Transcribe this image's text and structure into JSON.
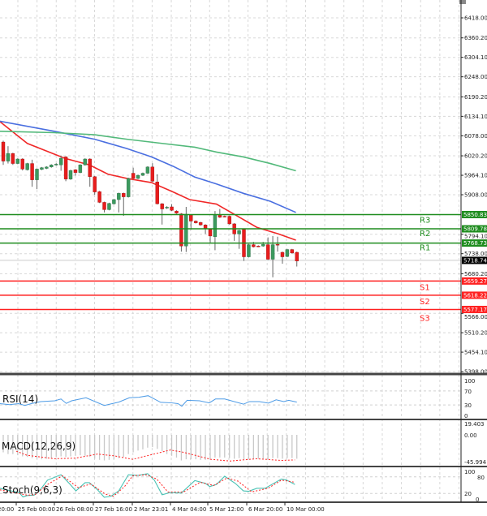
{
  "chart_data": {
    "type": "candlestick",
    "price_axis": {
      "range": [
        5398.0,
        6418.0
      ],
      "ticks": [
        "6418.00",
        "6360.20",
        "6304.10",
        "6248.00",
        "6190.20",
        "6134.10",
        "6078.00",
        "6020.20",
        "5964.10",
        "5908.00",
        "5794.10",
        "5738.00",
        "5680.20",
        "5566.00",
        "5510.20",
        "5454.10",
        "5398.00"
      ]
    },
    "time_axis": {
      "labels": [
        "20:00",
        "25 Feb 00:00",
        "26 Feb 08:00",
        "27 Feb 16:00",
        "2 Mar 23:01",
        "4 Mar 04:00",
        "5 Mar 12:00",
        "6 Mar 20:00",
        "10 Mar 00:00"
      ]
    },
    "last_price": {
      "value": "5718.74",
      "color": "#000000"
    },
    "candles_ohlc": [
      [
        6060,
        6064,
        5994,
        6005
      ],
      [
        6005,
        6048,
        5998,
        6027
      ],
      [
        6027,
        6029,
        5994,
        5998
      ],
      [
        5998,
        6013,
        5996,
        6011
      ],
      [
        6011,
        6013,
        5978,
        5982
      ],
      [
        5980,
        6000,
        5978,
        5998
      ],
      [
        5998,
        6009,
        5931,
        5951
      ],
      [
        5951,
        5984,
        5924,
        5982
      ],
      [
        5981,
        5988,
        5979,
        5986
      ],
      [
        5984,
        5990,
        5982,
        5988
      ],
      [
        5988,
        5996,
        5986,
        5994
      ],
      [
        5995,
        5999,
        5992,
        5996
      ],
      [
        5994,
        6021,
        5977,
        6013
      ],
      [
        6017,
        6019,
        5947,
        5953
      ],
      [
        5953,
        5980,
        5951,
        5978
      ],
      [
        5980,
        5982,
        5963,
        5972
      ],
      [
        5972,
        5996,
        5970,
        5994
      ],
      [
        5994,
        6013,
        5992,
        6011
      ],
      [
        6011,
        6013,
        5931,
        5960
      ],
      [
        5960,
        5962,
        5908,
        5916
      ],
      [
        5917,
        5919,
        5884,
        5886
      ],
      [
        5886,
        5888,
        5857,
        5865
      ],
      [
        5865,
        5885,
        5863,
        5883
      ],
      [
        5882,
        5896,
        5880,
        5894
      ],
      [
        5894,
        5914,
        5857,
        5912
      ],
      [
        5912,
        5914,
        5847,
        5902
      ],
      [
        5902,
        5957,
        5900,
        5955
      ],
      [
        5970,
        5986,
        5953,
        5955
      ],
      [
        5955,
        5966,
        5953,
        5964
      ],
      [
        5964,
        5972,
        5962,
        5970
      ],
      [
        5970,
        5990,
        5968,
        5988
      ],
      [
        5988,
        5999,
        5945,
        5947
      ],
      [
        5945,
        5967,
        5880,
        5882
      ],
      [
        5882,
        5884,
        5822,
        5867
      ],
      [
        5871,
        5875,
        5867,
        5872
      ],
      [
        5873,
        5881,
        5861,
        5863
      ],
      [
        5861,
        5863,
        5853,
        5855
      ],
      [
        5853,
        5855,
        5744,
        5760
      ],
      [
        5760,
        5873,
        5743,
        5852
      ],
      [
        5850,
        5852,
        5807,
        5832
      ],
      [
        5832,
        5834,
        5825,
        5827
      ],
      [
        5828,
        5830,
        5819,
        5821
      ],
      [
        5821,
        5823,
        5795,
        5811
      ],
      [
        5808,
        5810,
        5768,
        5789
      ],
      [
        5787,
        5861,
        5748,
        5850
      ],
      [
        5850,
        5867,
        5841,
        5843
      ],
      [
        5846,
        5848,
        5843,
        5845
      ],
      [
        5846,
        5848,
        5822,
        5824
      ],
      [
        5824,
        5826,
        5775,
        5795
      ],
      [
        5795,
        5807,
        5752,
        5805
      ],
      [
        5808,
        5810,
        5717,
        5729
      ],
      [
        5729,
        5766,
        5727,
        5764
      ],
      [
        5764,
        5772,
        5756,
        5758
      ],
      [
        5760,
        5762,
        5757,
        5759
      ],
      [
        5760,
        5772,
        5758,
        5765
      ],
      [
        5764,
        5785,
        5720,
        5722
      ],
      [
        5722,
        5789,
        5670,
        5764
      ],
      [
        5765,
        5787,
        5744,
        5764
      ],
      [
        5742,
        5744,
        5709,
        5729
      ],
      [
        5730,
        5752,
        5728,
        5750
      ],
      [
        5750,
        5752,
        5738,
        5740
      ],
      [
        5742,
        5744,
        5701,
        5717
      ]
    ],
    "candle_colors": {
      "up": "#3c9a5f",
      "down": "#e81c1c"
    },
    "moving_averages": [
      {
        "color": "#f02828",
        "points": [
          [
            0.3,
            6119
          ],
          [
            6,
            6056
          ],
          [
            13.8,
            6013
          ],
          [
            18.9,
            5994
          ],
          [
            22.8,
            5967
          ],
          [
            26.7,
            5955
          ],
          [
            31.8,
            5943
          ],
          [
            36.3,
            5916
          ],
          [
            39.7,
            5894
          ],
          [
            45.3,
            5881
          ],
          [
            49.2,
            5850
          ],
          [
            53.7,
            5814
          ],
          [
            58.2,
            5795
          ],
          [
            61.8,
            5777
          ]
        ]
      },
      {
        "color": "#4a6fe0",
        "points": [
          [
            0.3,
            6120
          ],
          [
            11.6,
            6091
          ],
          [
            20,
            6068
          ],
          [
            26.7,
            6041
          ],
          [
            31.8,
            6017
          ],
          [
            36.3,
            5990
          ],
          [
            40.8,
            5959
          ],
          [
            45.3,
            5939
          ],
          [
            50.9,
            5912
          ],
          [
            56.5,
            5889
          ],
          [
            61.8,
            5857
          ]
        ]
      },
      {
        "color": "#52b97a",
        "points": [
          [
            0.3,
            6091
          ],
          [
            11.6,
            6087
          ],
          [
            20,
            6081
          ],
          [
            26.7,
            6068
          ],
          [
            34,
            6056
          ],
          [
            40.8,
            6045
          ],
          [
            45.3,
            6031
          ],
          [
            50.9,
            6017
          ],
          [
            56.5,
            5998
          ],
          [
            61.8,
            5977
          ]
        ]
      }
    ],
    "levels": [
      {
        "name": "R3",
        "value": "5850.83",
        "color": "#1e8c1e"
      },
      {
        "name": "R2",
        "value": "5809.78",
        "color": "#1e8c1e"
      },
      {
        "name": "R1",
        "value": "5768.73",
        "color": "#1e8c1e"
      },
      {
        "name": "S1",
        "value": "5659.27",
        "color": "#ff2020"
      },
      {
        "name": "S2",
        "value": "5618.22",
        "color": "#ff2020"
      },
      {
        "name": "S3",
        "value": "5577.17",
        "color": "#ff2020"
      }
    ],
    "rsi": {
      "label": "RSI(14)",
      "range": [
        0,
        100
      ],
      "ticks": [
        "100",
        "70",
        "30",
        "0"
      ],
      "color": "#4d9be6",
      "points": [
        [
          0.3,
          33.7
        ],
        [
          2.3,
          30.7
        ],
        [
          4.2,
          33.7
        ],
        [
          5.5,
          28.5
        ],
        [
          6.8,
          33.7
        ],
        [
          8.8,
          39.6
        ],
        [
          11.7,
          41.8
        ],
        [
          13,
          47
        ],
        [
          14.1,
          34.4
        ],
        [
          15.2,
          41.8
        ],
        [
          18.2,
          50.6
        ],
        [
          22,
          28.5
        ],
        [
          25,
          38.1
        ],
        [
          27.2,
          50.6
        ],
        [
          29.2,
          52
        ],
        [
          31.1,
          56.5
        ],
        [
          33.7,
          37.4
        ],
        [
          36,
          35.9
        ],
        [
          37.3,
          33.7
        ],
        [
          38.1,
          26.3
        ],
        [
          39.2,
          43.3
        ],
        [
          41.8,
          41.8
        ],
        [
          43.8,
          35.9
        ],
        [
          45.1,
          47
        ],
        [
          47,
          47
        ],
        [
          50.9,
          32.2
        ],
        [
          52.2,
          39.6
        ],
        [
          54.2,
          39.6
        ],
        [
          56.1,
          35.2
        ],
        [
          57.7,
          44.7
        ],
        [
          59.3,
          39.6
        ],
        [
          60.3,
          43.3
        ],
        [
          62,
          38.1
        ]
      ]
    },
    "macd": {
      "label": "MACD(12,26,9)",
      "range": [
        -45.994,
        19.403
      ],
      "ticks": [
        "19.403",
        "0.00",
        "-45.994"
      ],
      "histogram_color": "#c8c8c8",
      "signal_color": "#ff2020",
      "histogram": [
        -30,
        -33,
        -33,
        -35,
        -37,
        -38,
        -40,
        -41,
        -42,
        -41,
        -40,
        -38,
        -37,
        -38,
        -37,
        -36,
        -35,
        -36,
        -38,
        -41,
        -43,
        -44,
        -43,
        -42,
        -40,
        -38,
        -33,
        -30,
        -27,
        -25,
        -22,
        -21,
        -24,
        -28,
        -33,
        -36,
        -39,
        -44,
        -42,
        -42,
        -42,
        -43,
        -43,
        -41,
        -39,
        -39,
        -39,
        -40,
        -41,
        -40,
        -42,
        -41,
        -41,
        -41,
        -41,
        -42,
        -40,
        -40,
        -41,
        -40,
        -40,
        -41
      ],
      "signal": [
        [
          3.7,
          -28
        ],
        [
          5.9,
          -35
        ],
        [
          11.6,
          -41
        ],
        [
          16,
          -40
        ],
        [
          20.6,
          -33
        ],
        [
          24,
          -36
        ],
        [
          27.9,
          -42
        ],
        [
          31.8,
          -34
        ],
        [
          35.7,
          -26
        ],
        [
          38.5,
          -30
        ],
        [
          44.1,
          -42
        ],
        [
          48.1,
          -45
        ],
        [
          53.7,
          -41
        ],
        [
          58.8,
          -44
        ],
        [
          61.6,
          -43
        ]
      ]
    },
    "stoch": {
      "label": "Stoch(9,6,3)",
      "range": [
        0,
        100
      ],
      "ticks": [
        "100",
        "80",
        "20",
        "0"
      ],
      "main_color": "#49c2b4",
      "signal_color": "#ff2020",
      "main": [
        [
          0.3,
          38.7
        ],
        [
          2.6,
          29.3
        ],
        [
          4.3,
          23.1
        ],
        [
          5.1,
          7.5
        ],
        [
          6,
          12.2
        ],
        [
          7.4,
          13.8
        ],
        [
          8.5,
          29.3
        ],
        [
          10.2,
          68.3
        ],
        [
          13,
          87.8
        ],
        [
          14.7,
          56.6
        ],
        [
          16.1,
          29.3
        ],
        [
          18,
          59
        ],
        [
          18.9,
          59
        ],
        [
          20.6,
          33.2
        ],
        [
          22,
          6
        ],
        [
          23.4,
          9.9
        ],
        [
          25,
          29.3
        ],
        [
          27,
          87.8
        ],
        [
          29,
          85.4
        ],
        [
          31,
          91.7
        ],
        [
          32.4,
          68.3
        ],
        [
          34,
          15.3
        ],
        [
          35.7,
          23.1
        ],
        [
          38,
          21.6
        ],
        [
          40.8,
          66.7
        ],
        [
          43,
          56.6
        ],
        [
          43.9,
          44.9
        ],
        [
          45.3,
          52.7
        ],
        [
          47,
          82.3
        ],
        [
          49.2,
          56.6
        ],
        [
          50.9,
          29.3
        ],
        [
          52,
          27.8
        ],
        [
          53.7,
          38.7
        ],
        [
          55.4,
          38.7
        ],
        [
          58.8,
          72.2
        ],
        [
          59.9,
          68.3
        ],
        [
          61.6,
          52.7
        ]
      ],
      "signal": [
        [
          0.3,
          33
        ],
        [
          3.7,
          21.6
        ],
        [
          6,
          13.8
        ],
        [
          7.6,
          15.3
        ],
        [
          10.2,
          52.7
        ],
        [
          13.3,
          83.9
        ],
        [
          16.6,
          41
        ],
        [
          19.2,
          54.3
        ],
        [
          22.2,
          17.7
        ],
        [
          23.9,
          9.9
        ],
        [
          26.2,
          44.9
        ],
        [
          27.9,
          83.9
        ],
        [
          30.7,
          87.8
        ],
        [
          32.9,
          72.2
        ],
        [
          35.2,
          25.5
        ],
        [
          38.5,
          25.5
        ],
        [
          41.9,
          60.5
        ],
        [
          44.7,
          48.8
        ],
        [
          47.5,
          76.1
        ],
        [
          49.8,
          64.4
        ],
        [
          52.6,
          25.5
        ],
        [
          56,
          38.7
        ],
        [
          58.8,
          68.3
        ],
        [
          61.6,
          60.5
        ]
      ]
    }
  }
}
